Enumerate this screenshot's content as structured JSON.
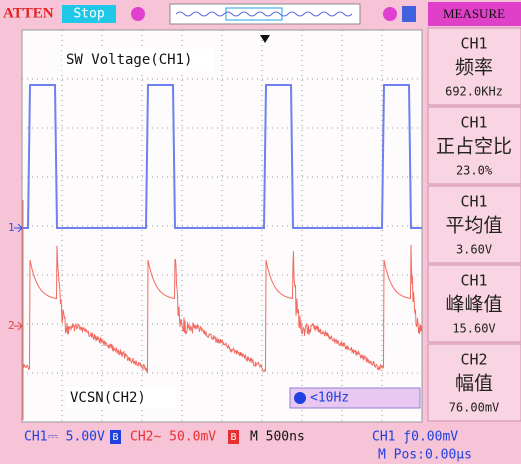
{
  "top_bar": {
    "brand": "ATTEN",
    "status": "Stop"
  },
  "measure": {
    "title": "MEASURE",
    "items": [
      {
        "channel": "CH1",
        "name": "频率",
        "value": "692.0KHz"
      },
      {
        "channel": "CH1",
        "name": "正占空比",
        "value": "23.0%"
      },
      {
        "channel": "CH1",
        "name": "平均值",
        "value": "3.60V"
      },
      {
        "channel": "CH1",
        "name": "峰峰值",
        "value": "15.60V"
      },
      {
        "channel": "CH2",
        "name": "幅值",
        "value": "76.00mV"
      }
    ]
  },
  "screen": {
    "ch1_label": "SW Voltage(CH1)",
    "ch2_label": "VCSN(CH2)",
    "ch1_marker": "1",
    "ch2_marker": "2",
    "trigger_info": "<10Hz"
  },
  "status_bar": {
    "ch1": "CH1⎓ 5.00V",
    "ch2": "CH2∼ 50.0mV",
    "bw_limit": "B",
    "timebase": "M 500ns",
    "trigger": "CH1 ƒ0.00mV",
    "position": "M Pos:0.00μs"
  }
}
